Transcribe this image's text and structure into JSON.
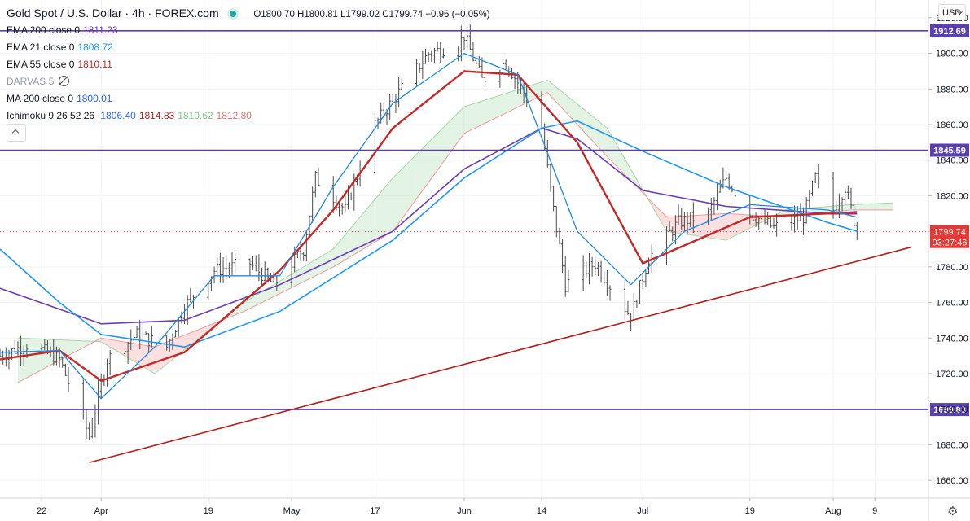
{
  "header": {
    "title": "Gold Spot / U.S. Dollar · 4h · FOREX.com",
    "ohlc": "O1800.70  H1800.81  L1799.02  C1799.74  −0.96 (−0.05%)"
  },
  "indicators": [
    {
      "label": "EMA 200 close 0",
      "value": "1811.23",
      "color": "#6a3cb5"
    },
    {
      "label": "EMA 21 close 0",
      "value": "1808.72",
      "color": "#2196f3"
    },
    {
      "label": "EMA 55 close 0",
      "value": "1810.11",
      "color": "#c62828"
    },
    {
      "label": "DARVAS 5",
      "value": "",
      "color": "#787b86"
    },
    {
      "label": "MA 200 close 0",
      "value": "1800.01",
      "color": "#2962ff"
    }
  ],
  "ichimoku": {
    "label": "Ichimoku 9 26 52 26",
    "values": [
      "1806.40",
      "1814.83",
      "1810.62",
      "1812.80"
    ],
    "colors": [
      "#2962ff",
      "#b71c1c",
      "#81c784",
      "#e57373"
    ]
  },
  "currency": "USD",
  "price_tag": {
    "price": "1799.74",
    "countdown": "03:27:46",
    "color": "#e53935"
  },
  "chart_data": {
    "type": "candlestick",
    "y_range": [
      1650,
      1930
    ],
    "y_ticks": [
      1660,
      1680,
      1700,
      1720,
      1740,
      1760,
      1780,
      1800,
      1820,
      1840,
      1860,
      1880,
      1900,
      1920
    ],
    "x_labels": [
      {
        "label": "22",
        "date": "2021-03-22"
      },
      {
        "label": "Apr",
        "date": "2021-04-01"
      },
      {
        "label": "19",
        "date": "2021-04-19"
      },
      {
        "label": "May",
        "date": "2021-05-03"
      },
      {
        "label": "17",
        "date": "2021-05-17"
      },
      {
        "label": "Jun",
        "date": "2021-06-01"
      },
      {
        "label": "14",
        "date": "2021-06-14"
      },
      {
        "label": "Jul",
        "date": "2021-07-01"
      },
      {
        "label": "19",
        "date": "2021-07-19"
      },
      {
        "label": "Aug",
        "date": "2021-08-02"
      },
      {
        "label": "9",
        "date": "2021-08-09"
      }
    ],
    "x_range": [
      "2021-03-15",
      "2021-08-18"
    ],
    "horizontal_levels": [
      {
        "price": 1912.69,
        "label": "1912.69",
        "color": "#5b3fb0"
      },
      {
        "price": 1845.59,
        "label": "1845.59",
        "color": "#5b3fb0"
      },
      {
        "price": 1699.83,
        "label": "1699.83",
        "color": "#5b3fb0"
      }
    ],
    "trendline": {
      "from": {
        "date": "2021-03-30",
        "price": 1670
      },
      "to": {
        "date": "2021-08-15",
        "price": 1791
      },
      "color": "#b71c1c"
    },
    "price_anchors": [
      [
        "2021-03-15",
        1730
      ],
      [
        "2021-03-20",
        1737
      ],
      [
        "2021-03-25",
        1728
      ],
      [
        "2021-03-30",
        1685
      ],
      [
        "2021-04-02",
        1728
      ],
      [
        "2021-04-07",
        1742
      ],
      [
        "2021-04-12",
        1735
      ],
      [
        "2021-04-15",
        1758
      ],
      [
        "2021-04-20",
        1778
      ],
      [
        "2021-04-26",
        1782
      ],
      [
        "2021-04-30",
        1770
      ],
      [
        "2021-05-05",
        1790
      ],
      [
        "2021-05-07",
        1830
      ],
      [
        "2021-05-12",
        1812
      ],
      [
        "2021-05-17",
        1860
      ],
      [
        "2021-05-21",
        1878
      ],
      [
        "2021-05-26",
        1900
      ],
      [
        "2021-05-31",
        1905
      ],
      [
        "2021-06-01",
        1910
      ],
      [
        "2021-06-04",
        1885
      ],
      [
        "2021-06-08",
        1895
      ],
      [
        "2021-06-11",
        1878
      ],
      [
        "2021-06-14",
        1858
      ],
      [
        "2021-06-16",
        1812
      ],
      [
        "2021-06-18",
        1770
      ],
      [
        "2021-06-23",
        1782
      ],
      [
        "2021-06-29",
        1752
      ],
      [
        "2021-07-02",
        1785
      ],
      [
        "2021-07-07",
        1805
      ],
      [
        "2021-07-12",
        1810
      ],
      [
        "2021-07-15",
        1830
      ],
      [
        "2021-07-19",
        1810
      ],
      [
        "2021-07-23",
        1802
      ],
      [
        "2021-07-28",
        1808
      ],
      [
        "2021-07-30",
        1830
      ],
      [
        "2021-08-02",
        1812
      ],
      [
        "2021-08-04",
        1825
      ],
      [
        "2021-08-06",
        1800
      ]
    ],
    "series": [
      {
        "name": "EMA 200",
        "color": "#6a3cb5",
        "anchors": [
          [
            "2021-03-15",
            1768
          ],
          [
            "2021-04-01",
            1748
          ],
          [
            "2021-04-15",
            1750
          ],
          [
            "2021-05-01",
            1770
          ],
          [
            "2021-05-20",
            1800
          ],
          [
            "2021-06-01",
            1835
          ],
          [
            "2021-06-14",
            1858
          ],
          [
            "2021-06-20",
            1852
          ],
          [
            "2021-07-01",
            1823
          ],
          [
            "2021-07-15",
            1814
          ],
          [
            "2021-08-01",
            1810
          ],
          [
            "2021-08-06",
            1811
          ]
        ]
      },
      {
        "name": "MA 200",
        "color": "#2196f3",
        "anchors": [
          [
            "2021-03-15",
            1790
          ],
          [
            "2021-03-25",
            1760
          ],
          [
            "2021-04-01",
            1742
          ],
          [
            "2021-04-15",
            1735
          ],
          [
            "2021-05-01",
            1755
          ],
          [
            "2021-05-20",
            1795
          ],
          [
            "2021-06-01",
            1830
          ],
          [
            "2021-06-14",
            1858
          ],
          [
            "2021-06-20",
            1862
          ],
          [
            "2021-07-01",
            1845
          ],
          [
            "2021-07-15",
            1825
          ],
          [
            "2021-08-01",
            1805
          ],
          [
            "2021-08-06",
            1800
          ]
        ]
      },
      {
        "name": "EMA 55",
        "color": "#c62828",
        "anchors": [
          [
            "2021-03-15",
            1728
          ],
          [
            "2021-03-25",
            1733
          ],
          [
            "2021-04-01",
            1716
          ],
          [
            "2021-04-15",
            1732
          ],
          [
            "2021-05-01",
            1778
          ],
          [
            "2021-05-10",
            1812
          ],
          [
            "2021-05-20",
            1858
          ],
          [
            "2021-06-01",
            1890
          ],
          [
            "2021-06-10",
            1888
          ],
          [
            "2021-06-20",
            1850
          ],
          [
            "2021-07-01",
            1782
          ],
          [
            "2021-07-10",
            1795
          ],
          [
            "2021-07-19",
            1808
          ],
          [
            "2021-08-01",
            1810
          ],
          [
            "2021-08-06",
            1810
          ]
        ]
      },
      {
        "name": "EMA 21",
        "color": "#1e88e5",
        "anchors": [
          [
            "2021-03-15",
            1732
          ],
          [
            "2021-03-25",
            1733
          ],
          [
            "2021-04-01",
            1706
          ],
          [
            "2021-04-10",
            1735
          ],
          [
            "2021-04-20",
            1775
          ],
          [
            "2021-05-01",
            1775
          ],
          [
            "2021-05-10",
            1825
          ],
          [
            "2021-05-20",
            1872
          ],
          [
            "2021-06-01",
            1900
          ],
          [
            "2021-06-10",
            1888
          ],
          [
            "2021-06-20",
            1800
          ],
          [
            "2021-06-29",
            1770
          ],
          [
            "2021-07-08",
            1800
          ],
          [
            "2021-07-19",
            1815
          ],
          [
            "2021-08-01",
            1812
          ],
          [
            "2021-08-06",
            1808
          ]
        ]
      }
    ],
    "ichimoku_cloud": {
      "span_a": [
        [
          "2021-03-18",
          1740
        ],
        [
          "2021-04-01",
          1738
        ],
        [
          "2021-04-10",
          1720
        ],
        [
          "2021-04-25",
          1760
        ],
        [
          "2021-05-10",
          1790
        ],
        [
          "2021-05-20",
          1830
        ],
        [
          "2021-06-01",
          1870
        ],
        [
          "2021-06-15",
          1885
        ],
        [
          "2021-06-25",
          1858
        ],
        [
          "2021-07-05",
          1800
        ],
        [
          "2021-07-15",
          1795
        ],
        [
          "2021-07-25",
          1812
        ],
        [
          "2021-08-05",
          1815
        ],
        [
          "2021-08-12",
          1816
        ]
      ],
      "span_b": [
        [
          "2021-03-18",
          1715
        ],
        [
          "2021-04-01",
          1740
        ],
        [
          "2021-04-10",
          1735
        ],
        [
          "2021-04-25",
          1755
        ],
        [
          "2021-05-10",
          1780
        ],
        [
          "2021-05-20",
          1800
        ],
        [
          "2021-06-01",
          1855
        ],
        [
          "2021-06-15",
          1878
        ],
        [
          "2021-06-25",
          1842
        ],
        [
          "2021-07-05",
          1808
        ],
        [
          "2021-07-15",
          1810
        ],
        [
          "2021-07-25",
          1808
        ],
        [
          "2021-08-05",
          1812
        ],
        [
          "2021-08-12",
          1812
        ]
      ]
    },
    "last_price": 1799.74
  }
}
